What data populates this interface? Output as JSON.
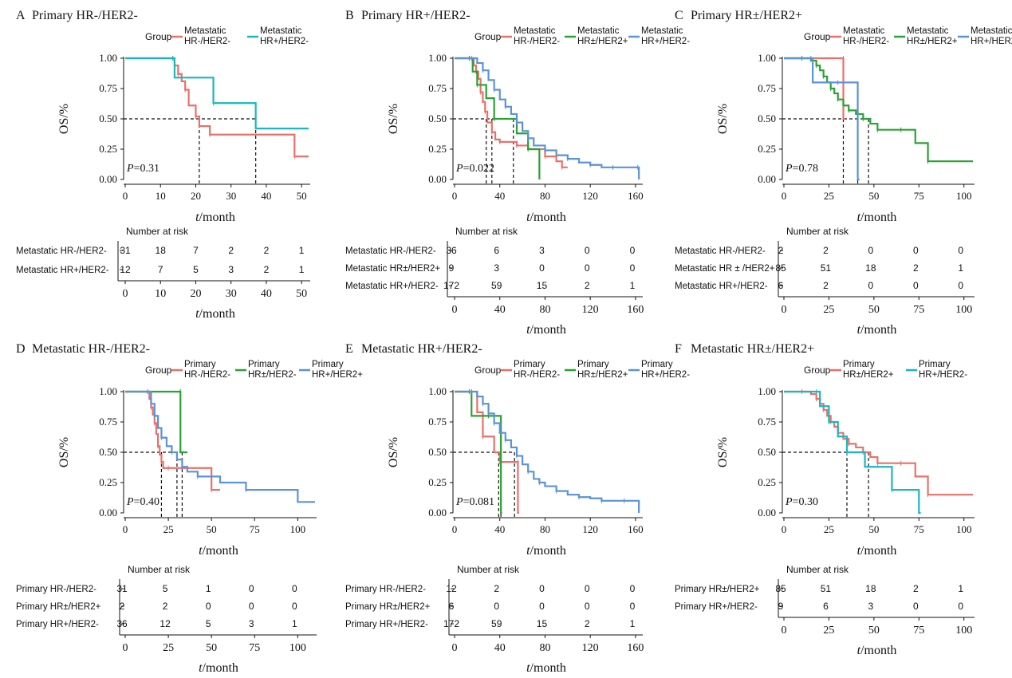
{
  "colors": {
    "red": "#e8716a",
    "green": "#2aa234",
    "blue": "#5b93d6",
    "teal": "#1bb6c0",
    "axis": "#111111"
  },
  "labels": {
    "group": "Group",
    "os": "OS/%",
    "t": "t",
    "month": "/month",
    "risk_title": "Number at risk",
    "y_ticks": [
      "1.00",
      "0.75",
      "0.50",
      "0.25",
      "0.00"
    ]
  },
  "chart_data": [
    {
      "type": "line",
      "panel": "A",
      "title": "Primary HR-/HER2-",
      "xlim": [
        0,
        52
      ],
      "xticks": [
        0,
        10,
        20,
        30,
        40,
        50
      ],
      "ylim": [
        0,
        1
      ],
      "pvalue_label": "P",
      "pvalue": "=0.31",
      "medians": [
        21,
        37
      ],
      "series": [
        {
          "name_l1": "Metastatic",
          "name_l2": "HR-/HER2-",
          "color": "red",
          "x": [
            0,
            13.5,
            14,
            15,
            16,
            17,
            18,
            20,
            21,
            24,
            37,
            48,
            52
          ],
          "y": [
            1.0,
            1.0,
            0.94,
            0.87,
            0.81,
            0.74,
            0.61,
            0.52,
            0.44,
            0.37,
            0.37,
            0.19,
            0.19
          ]
        },
        {
          "name_l1": "Metastatic",
          "name_l2": "HR+/HER2-",
          "color": "teal",
          "x": [
            0,
            13.5,
            14,
            25,
            37,
            52
          ],
          "y": [
            1.0,
            1.0,
            0.84,
            0.63,
            0.42,
            0.42
          ]
        }
      ],
      "risk_rows": [
        {
          "label": "Metastatic HR-/HER2-",
          "values": [
            "31",
            "18",
            "7",
            "2",
            "2",
            "1"
          ]
        },
        {
          "label": "Metastatic HR+/HER2-",
          "values": [
            "12",
            "7",
            "5",
            "3",
            "2",
            "1"
          ]
        }
      ]
    },
    {
      "type": "line",
      "panel": "B",
      "title": "Primary HR+/HER2-",
      "xlim": [
        0,
        165
      ],
      "xticks": [
        0,
        40,
        80,
        120,
        160
      ],
      "ylim": [
        0,
        1
      ],
      "pvalue_label": "P",
      "pvalue": "=0.022",
      "medians": [
        28,
        33,
        52
      ],
      "series": [
        {
          "name_l1": "Metastatic",
          "name_l2": "HR-/HER2-",
          "color": "red",
          "x": [
            0,
            13,
            17,
            19,
            21,
            23,
            25,
            27,
            29,
            33,
            36,
            40,
            50,
            55,
            65,
            80,
            90,
            95,
            100
          ],
          "y": [
            1.0,
            1.0,
            0.94,
            0.89,
            0.83,
            0.72,
            0.64,
            0.56,
            0.47,
            0.39,
            0.33,
            0.31,
            0.31,
            0.28,
            0.25,
            0.19,
            0.15,
            0.1,
            0.1
          ]
        },
        {
          "name_l1": "Metastatic",
          "name_l2": "HR±/HER2+",
          "color": "green",
          "x": [
            0,
            13,
            16,
            20,
            28,
            35,
            55,
            65,
            75
          ],
          "y": [
            1.0,
            1.0,
            0.89,
            0.78,
            0.67,
            0.5,
            0.38,
            0.25,
            0.0
          ]
        },
        {
          "name_l1": "Metastatic",
          "name_l2": "HR+/HER2-",
          "color": "blue",
          "x": [
            0,
            15,
            20,
            25,
            30,
            35,
            40,
            45,
            50,
            55,
            60,
            65,
            70,
            80,
            90,
            100,
            110,
            120,
            130,
            140,
            150,
            162,
            163
          ],
          "y": [
            1.0,
            1.0,
            0.96,
            0.9,
            0.82,
            0.74,
            0.66,
            0.6,
            0.54,
            0.47,
            0.4,
            0.34,
            0.28,
            0.24,
            0.2,
            0.17,
            0.14,
            0.12,
            0.1,
            0.1,
            0.1,
            0.1,
            0.0
          ]
        }
      ],
      "risk_rows": [
        {
          "label": "Metastatic HR-/HER2-",
          "values": [
            "36",
            "6",
            "3",
            "0",
            "0"
          ]
        },
        {
          "label": "Metastatic HR±/HER2+",
          "values": [
            "9",
            "3",
            "0",
            "0",
            "0"
          ]
        },
        {
          "label": "Metastatic HR+/HER2-",
          "values": [
            "172",
            "59",
            "15",
            "2",
            "1"
          ]
        }
      ]
    },
    {
      "type": "line",
      "panel": "C",
      "title": "Primary HR±/HER2+",
      "xlim": [
        0,
        105
      ],
      "xticks": [
        0,
        25,
        50,
        75,
        100
      ],
      "ylim": [
        0,
        1
      ],
      "pvalue_label": "P",
      "pvalue": "=0.78",
      "medians": [
        33,
        41,
        47
      ],
      "series": [
        {
          "name_l1": "Metastatic",
          "name_l2": "HR-/HER2-",
          "color": "red",
          "x": [
            0,
            33,
            33.01,
            34
          ],
          "y": [
            1.0,
            1.0,
            0.5,
            0.5
          ]
        },
        {
          "name_l1": "Metastatic",
          "name_l2": "HR±/HER2+",
          "color": "green",
          "x": [
            0,
            10,
            15,
            18,
            20,
            22,
            24,
            26,
            28,
            30,
            33,
            36,
            40,
            44,
            48,
            52,
            60,
            65,
            73,
            80,
            105
          ],
          "y": [
            1.0,
            1.0,
            0.98,
            0.94,
            0.9,
            0.85,
            0.8,
            0.75,
            0.71,
            0.66,
            0.61,
            0.57,
            0.54,
            0.5,
            0.46,
            0.41,
            0.41,
            0.41,
            0.3,
            0.15,
            0.15
          ]
        },
        {
          "name_l1": "Metastatic",
          "name_l2": "HR+/HER2-",
          "color": "blue",
          "x": [
            0,
            15,
            16,
            30,
            41,
            41.01,
            42
          ],
          "y": [
            1.0,
            1.0,
            0.8,
            0.8,
            0.8,
            0.0,
            0.0
          ]
        }
      ],
      "risk_rows": [
        {
          "label": "Metastatic HR-/HER2-",
          "values": [
            "2",
            "2",
            "0",
            "0",
            "0"
          ]
        },
        {
          "label": "Metastatic HR ± /HER2+",
          "values": [
            "85",
            "51",
            "18",
            "2",
            "1"
          ]
        },
        {
          "label": "Metastatic HR+/HER2-",
          "values": [
            "6",
            "2",
            "0",
            "0",
            "0"
          ]
        }
      ]
    },
    {
      "type": "line",
      "panel": "D",
      "title": "Metastatic HR-/HER2-",
      "xlim": [
        0,
        110
      ],
      "xticks": [
        0,
        25,
        50,
        75,
        100
      ],
      "ylim": [
        0,
        1
      ],
      "pvalue_label": "P",
      "pvalue": "=0.40",
      "medians": [
        21,
        30,
        33
      ],
      "series": [
        {
          "name_l1": "Primary",
          "name_l2": "HR-/HER2-",
          "color": "red",
          "x": [
            0,
            13,
            14,
            15,
            16,
            17,
            18,
            19,
            20,
            21,
            22,
            25,
            40,
            50,
            55
          ],
          "y": [
            1.0,
            1.0,
            0.94,
            0.87,
            0.81,
            0.74,
            0.65,
            0.55,
            0.48,
            0.42,
            0.37,
            0.37,
            0.37,
            0.19,
            0.19
          ]
        },
        {
          "name_l1": "Primary",
          "name_l2": "HR±/HER2-",
          "color": "green",
          "x": [
            0,
            32,
            32.01,
            36
          ],
          "y": [
            1.0,
            1.0,
            0.5,
            0.5
          ]
        },
        {
          "name_l1": "Primary",
          "name_l2": "HR+/HER2+",
          "color": "blue",
          "x": [
            0,
            13,
            15,
            17,
            19,
            21,
            24,
            27,
            30,
            33,
            36,
            42,
            55,
            70,
            100,
            110
          ],
          "y": [
            1.0,
            1.0,
            0.9,
            0.8,
            0.7,
            0.62,
            0.55,
            0.5,
            0.44,
            0.38,
            0.34,
            0.3,
            0.25,
            0.19,
            0.09,
            0.09
          ]
        }
      ],
      "risk_rows": [
        {
          "label": "Primary HR-/HER2-",
          "values": [
            "31",
            "5",
            "1",
            "0",
            "0"
          ]
        },
        {
          "label": "Primary HR±/HER2+",
          "values": [
            "2",
            "2",
            "0",
            "0",
            "0"
          ]
        },
        {
          "label": "Primary HR+/HER2-",
          "values": [
            "36",
            "12",
            "5",
            "3",
            "1"
          ]
        }
      ]
    },
    {
      "type": "line",
      "panel": "E",
      "title": "Metastatic HR+/HER2-",
      "xlim": [
        0,
        165
      ],
      "xticks": [
        0,
        40,
        80,
        120,
        160
      ],
      "ylim": [
        0,
        1
      ],
      "pvalue_label": "P",
      "pvalue": "=0.081",
      "medians": [
        39,
        41,
        53
      ],
      "series": [
        {
          "name_l1": "Primary",
          "name_l2": "HR-/HER2-",
          "color": "red",
          "x": [
            0,
            15,
            20,
            25,
            35,
            40,
            50,
            56,
            56.01,
            57
          ],
          "y": [
            1.0,
            1.0,
            0.83,
            0.63,
            0.5,
            0.42,
            0.42,
            0.42,
            0.0,
            0.0
          ]
        },
        {
          "name_l1": "Primary",
          "name_l2": "HR±/HER2+",
          "color": "green",
          "x": [
            0,
            13,
            15,
            30,
            41,
            41.01,
            42
          ],
          "y": [
            1.0,
            1.0,
            0.8,
            0.8,
            0.6,
            0.0,
            0.0
          ]
        },
        {
          "name_l1": "Primary",
          "name_l2": "HR+/HER2-",
          "color": "blue",
          "x": [
            0,
            15,
            20,
            25,
            30,
            35,
            40,
            45,
            50,
            55,
            60,
            65,
            70,
            75,
            80,
            90,
            100,
            110,
            120,
            130,
            140,
            150,
            162,
            163
          ],
          "y": [
            1.0,
            1.0,
            0.96,
            0.9,
            0.82,
            0.74,
            0.66,
            0.6,
            0.54,
            0.47,
            0.4,
            0.34,
            0.28,
            0.25,
            0.22,
            0.18,
            0.15,
            0.13,
            0.12,
            0.1,
            0.1,
            0.1,
            0.1,
            0.0
          ]
        }
      ],
      "risk_rows": [
        {
          "label": "Primary HR-/HER2-",
          "values": [
            "12",
            "2",
            "0",
            "0",
            "0"
          ]
        },
        {
          "label": "Primary HR±/HER2+",
          "values": [
            "6",
            "0",
            "0",
            "0",
            "0"
          ]
        },
        {
          "label": "Primary HR+/HER2-",
          "values": [
            "172",
            "59",
            "15",
            "2",
            "1"
          ]
        }
      ]
    },
    {
      "type": "line",
      "panel": "F",
      "title": "Metastatic HR±/HER2+",
      "xlim": [
        0,
        105
      ],
      "xticks": [
        0,
        25,
        50,
        75,
        100
      ],
      "ylim": [
        0,
        1
      ],
      "pvalue_label": "P",
      "pvalue": "=0.30",
      "medians": [
        35,
        47
      ],
      "series": [
        {
          "name_l1": "Primary",
          "name_l2": "HR±/HER2+",
          "color": "red",
          "x": [
            0,
            10,
            15,
            18,
            20,
            22,
            24,
            26,
            28,
            30,
            33,
            36,
            40,
            44,
            48,
            52,
            60,
            65,
            73,
            80,
            105
          ],
          "y": [
            1.0,
            1.0,
            0.98,
            0.94,
            0.9,
            0.85,
            0.8,
            0.75,
            0.71,
            0.66,
            0.61,
            0.57,
            0.54,
            0.5,
            0.46,
            0.41,
            0.41,
            0.41,
            0.3,
            0.15,
            0.15
          ]
        },
        {
          "name_l1": "Primary",
          "name_l2": "HR+/HER2-",
          "color": "teal",
          "x": [
            0,
            18,
            20,
            25,
            30,
            35,
            45,
            60,
            75,
            75.01,
            76
          ],
          "y": [
            1.0,
            1.0,
            0.88,
            0.75,
            0.63,
            0.5,
            0.38,
            0.19,
            0.19,
            0.0,
            0.0
          ]
        }
      ],
      "risk_rows": [
        {
          "label": "Primary HR±/HER2+",
          "values": [
            "85",
            "51",
            "18",
            "2",
            "1"
          ]
        },
        {
          "label": "Primary HR+/HER2-",
          "values": [
            "9",
            "6",
            "3",
            "0",
            "0"
          ]
        }
      ]
    }
  ]
}
